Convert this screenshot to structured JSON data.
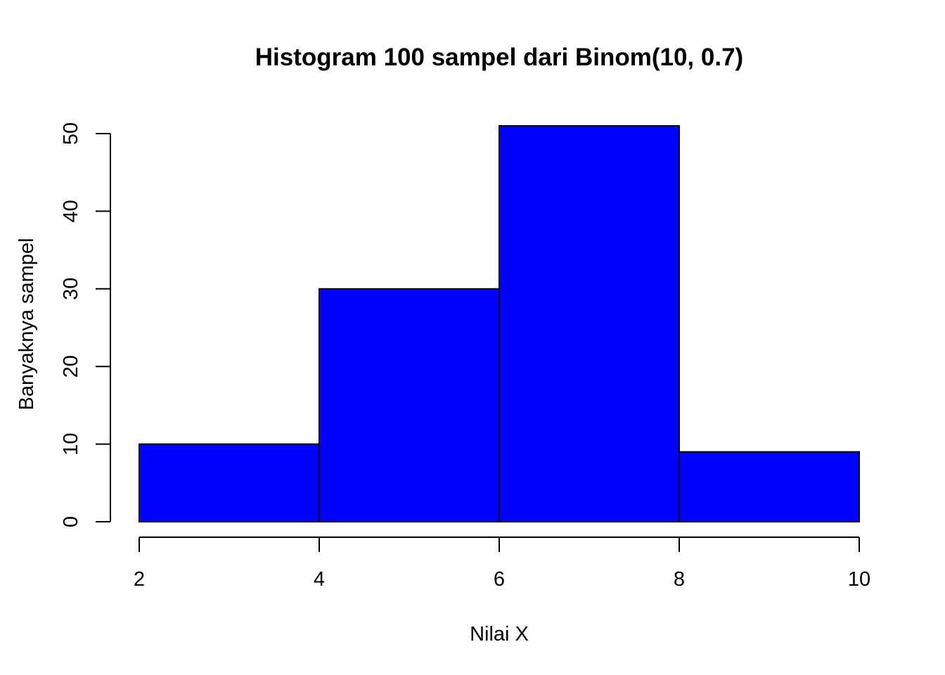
{
  "chart_data": {
    "type": "bar",
    "title": "Histogram 100 sampel dari Binom(10, 0.7)",
    "xlabel": "Nilai X",
    "ylabel": "Banyaknya sampel",
    "bins": [
      {
        "x0": 2,
        "x1": 4,
        "count": 10
      },
      {
        "x0": 4,
        "x1": 6,
        "count": 30
      },
      {
        "x0": 6,
        "x1": 8,
        "count": 51
      },
      {
        "x0": 8,
        "x1": 10,
        "count": 9
      }
    ],
    "xticks": [
      2,
      4,
      6,
      8,
      10
    ],
    "yticks": [
      0,
      10,
      20,
      30,
      40,
      50
    ],
    "xlim": [
      2,
      10
    ],
    "ylim": [
      0,
      50
    ],
    "grid": false,
    "legend": "none",
    "bar_color": "#0000ff",
    "outline_color": "#000000"
  }
}
